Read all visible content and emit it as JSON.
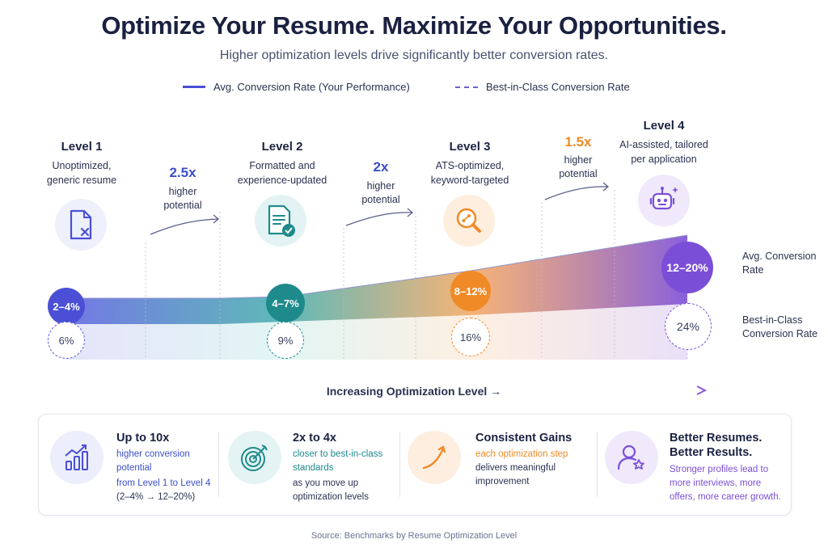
{
  "title": "Optimize Your Resume. Maximize Your Opportunities.",
  "subtitle": "Higher optimization levels drive significantly better conversion rates.",
  "legend": {
    "avg": "Avg. Conversion Rate (Your Performance)",
    "best": "Best-in-Class Conversion Rate"
  },
  "levels": [
    {
      "name": "Level 1",
      "desc1": "Unoptimized,",
      "desc2": "generic resume",
      "avg": "2–4%",
      "best": "6%",
      "color": "#4a4fd6",
      "icon": "file-x-icon"
    },
    {
      "name": "Level 2",
      "desc1": "Formatted and",
      "desc2": "experience-updated",
      "avg": "4–7%",
      "best": "9%",
      "color": "#1f8a8c",
      "icon": "file-check-icon"
    },
    {
      "name": "Level 3",
      "desc1": "ATS-optimized,",
      "desc2": "keyword-targeted",
      "avg": "8–12%",
      "best": "16%",
      "color": "#f08a26",
      "icon": "search-icon"
    },
    {
      "name": "Level 4",
      "desc1": "AI-assisted, tailored",
      "desc2": "per application",
      "avg": "12–20%",
      "best": "24%",
      "color": "#7b4ed8",
      "icon": "robot-icon"
    }
  ],
  "multipliers": [
    {
      "value": "2.5x",
      "line1": "higher",
      "line2": "potential",
      "color": "#3a4fc8"
    },
    {
      "value": "2x",
      "line1": "higher",
      "line2": "potential",
      "color": "#3a4fc8"
    },
    {
      "value": "1.5x",
      "line1": "higher",
      "line2": "potential",
      "color": "#f08a26"
    }
  ],
  "right_labels": {
    "avg1": "Avg. Conversion",
    "avg2": "Rate",
    "best1": "Best-in-Class",
    "best2": "Conversion Rate"
  },
  "axis_label": "Increasing Optimization Level →",
  "chart_data": {
    "type": "area",
    "categories": [
      "Level 1",
      "Level 2",
      "Level 3",
      "Level 4"
    ],
    "series": [
      {
        "name": "Avg. Conversion Rate (Your Performance)",
        "ranges": [
          [
            2,
            4
          ],
          [
            4,
            7
          ],
          [
            8,
            12
          ],
          [
            12,
            20
          ]
        ],
        "labels": [
          "2–4%",
          "4–7%",
          "8–12%",
          "12–20%"
        ]
      },
      {
        "name": "Best-in-Class Conversion Rate",
        "values": [
          6,
          9,
          16,
          24
        ],
        "labels": [
          "6%",
          "9%",
          "16%",
          "24%"
        ]
      }
    ],
    "multipliers": [
      "2.5x",
      "2x",
      "1.5x"
    ],
    "xlabel": "Increasing Optimization Level →",
    "ylabel": ""
  },
  "cards": [
    {
      "title1": "Up to 10x",
      "title2": "",
      "hi1": "higher conversion",
      "hi2": "potential",
      "body1": "from Level 1 to Level 4",
      "body2": "(2–4% → 12–20%)",
      "color": "#4a4fd6",
      "icon": "bar-chart-icon"
    },
    {
      "title1": "2x to 4x",
      "title2": "",
      "hi1": "closer to best-in-class",
      "hi2": "standards",
      "body1": "as you move up",
      "body2": "optimization levels",
      "color": "#1f8a8c",
      "icon": "target-icon"
    },
    {
      "title1": "Consistent Gains",
      "title2": "",
      "hi1": "each optimization step",
      "hi2": "",
      "body1": "delivers meaningful",
      "body2": "improvement",
      "color": "#f08a26",
      "icon": "trend-arrow-icon"
    },
    {
      "title1": "Better Resumes.",
      "title2": "Better Results.",
      "hi1": "Stronger profiles lead to",
      "hi2": "more interviews, more",
      "body1": "offers, more career growth.",
      "body2": "",
      "color": "#7b4ed8",
      "icon": "user-star-icon"
    }
  ],
  "source": "Source: Benchmarks by Resume Optimization Level"
}
